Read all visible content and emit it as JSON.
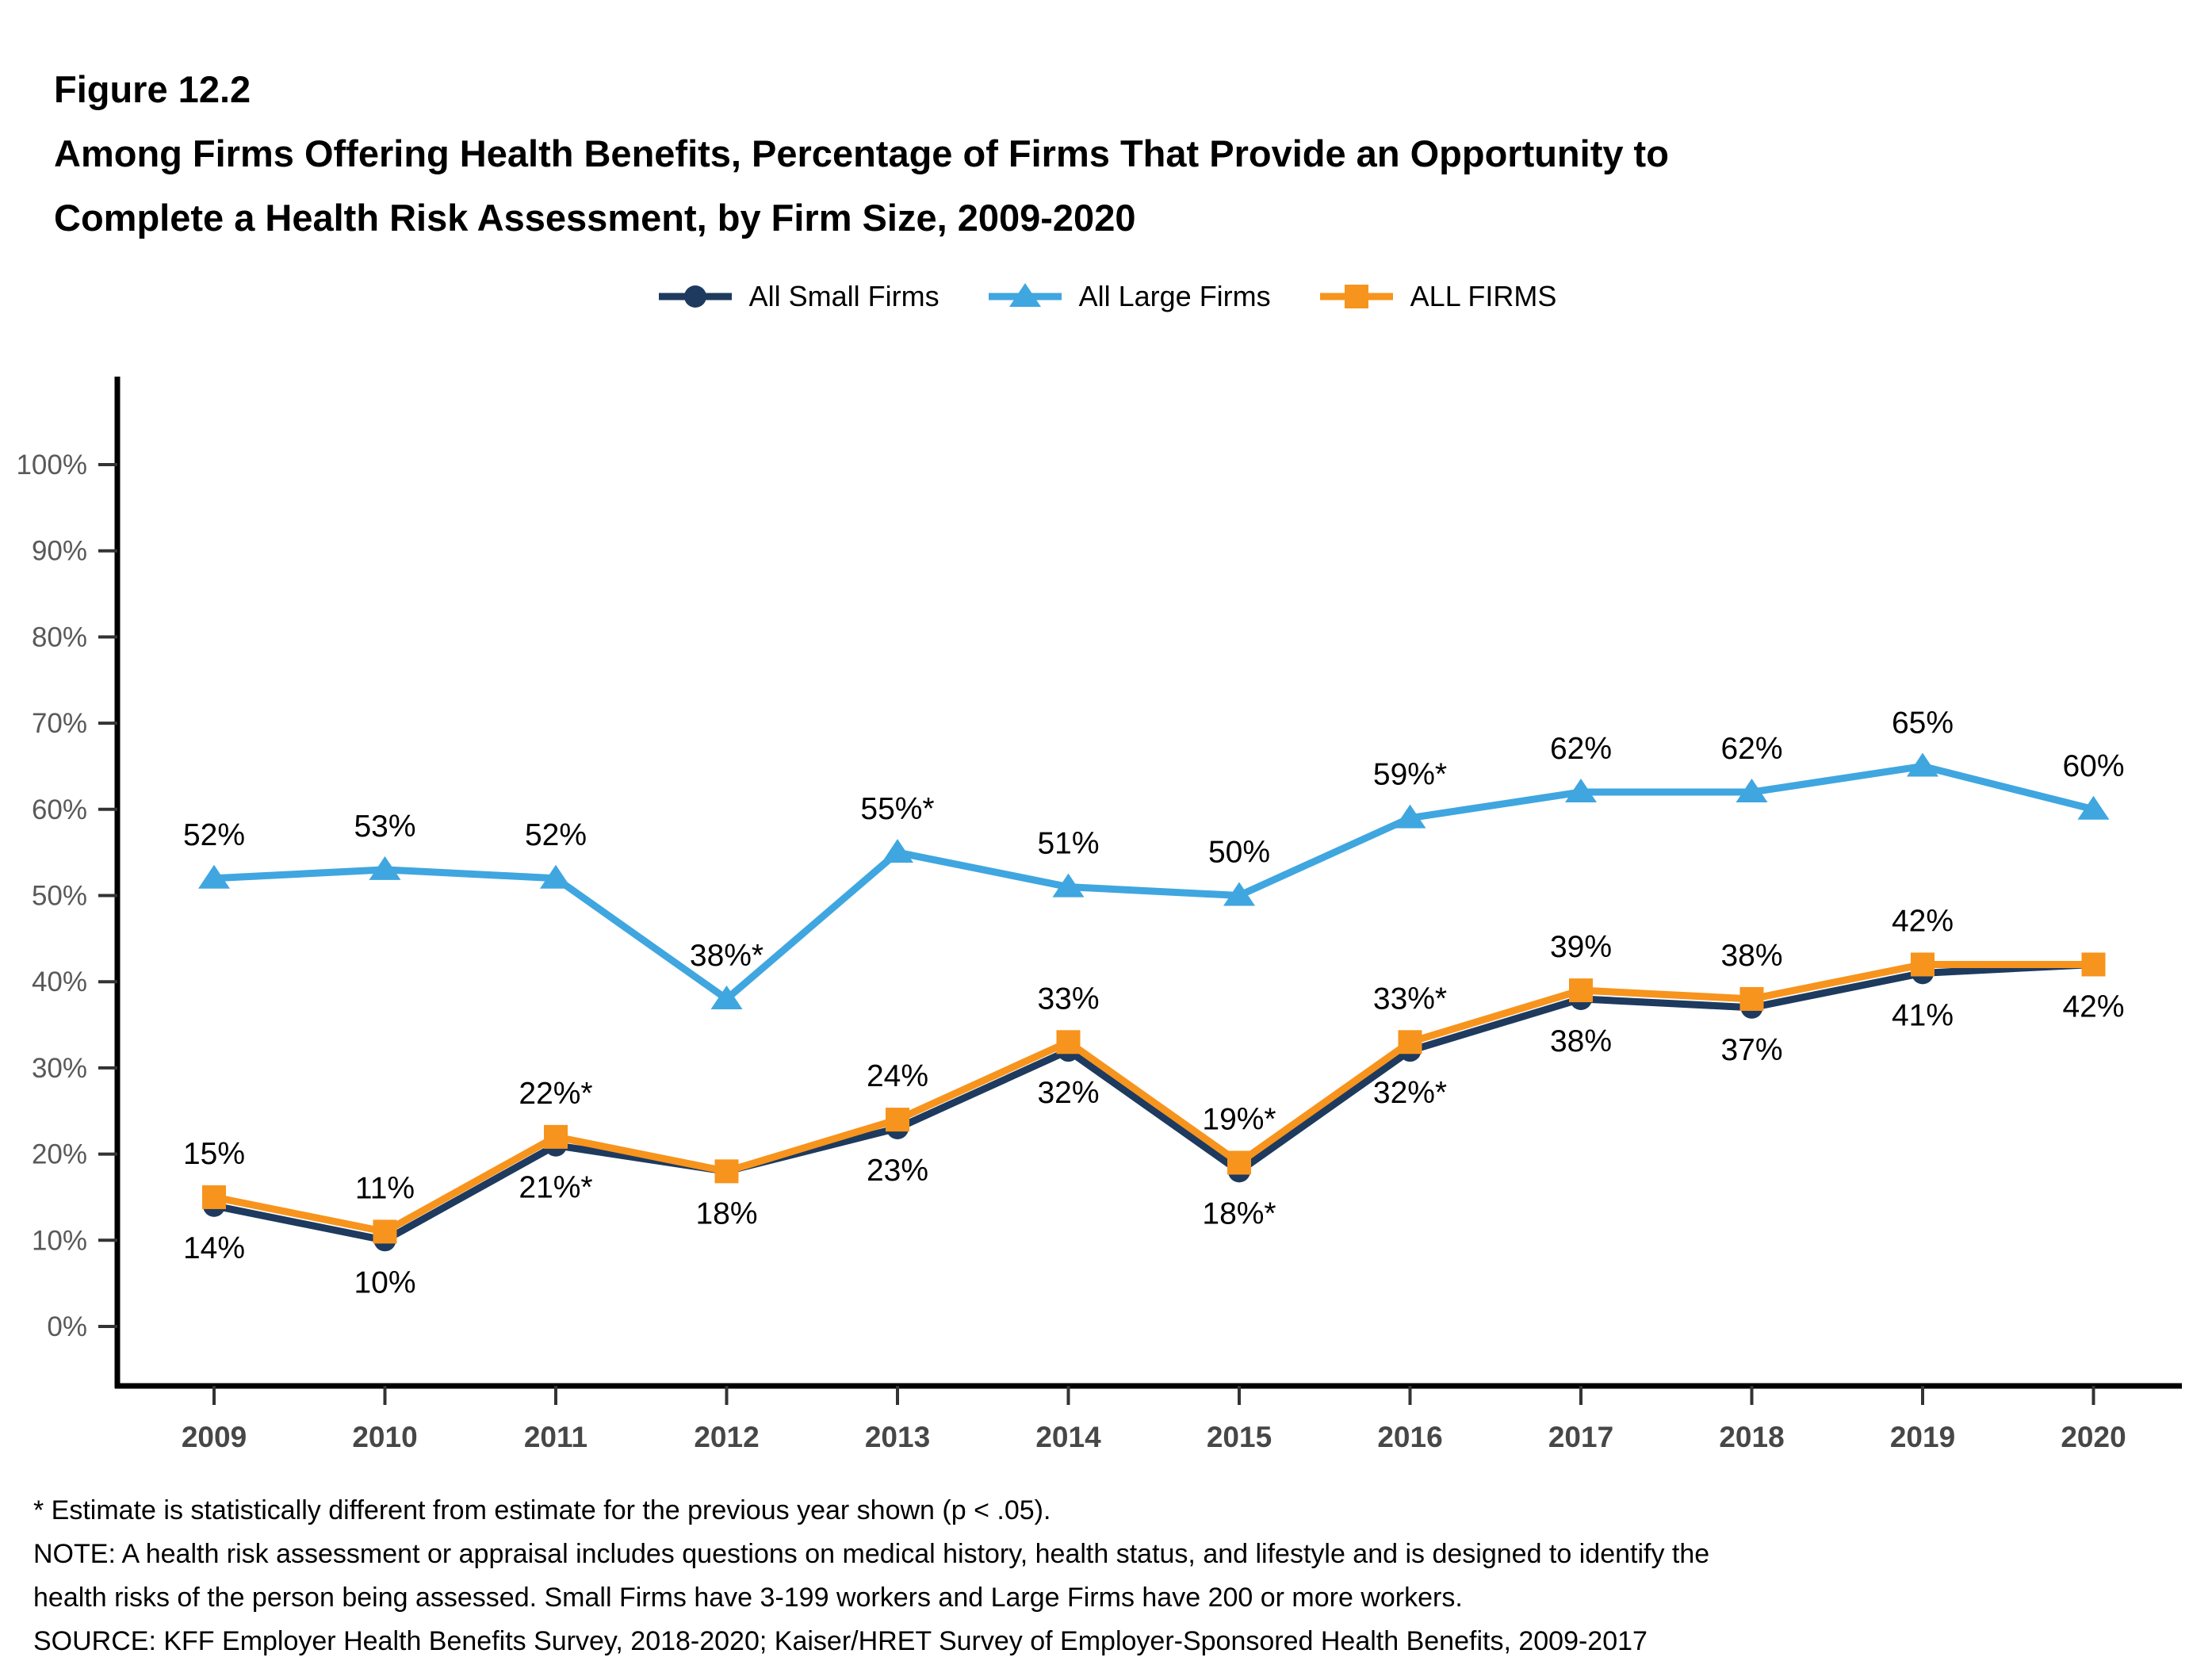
{
  "header": {
    "figure_number": "Figure 12.2",
    "title_lines": [
      "Among Firms Offering Health Benefits, Percentage of Firms That Provide an Opportunity to",
      "Complete a Health Risk Assessment, by Firm Size, 2009-2020"
    ]
  },
  "chart_data": {
    "type": "line",
    "x": [
      "2009",
      "2010",
      "2011",
      "2012",
      "2013",
      "2014",
      "2015",
      "2016",
      "2017",
      "2018",
      "2019",
      "2020"
    ],
    "xlabel": "",
    "ylabel": "",
    "ylim": [
      0,
      100
    ],
    "ytick_step": 10,
    "ytick_labels": [
      "0%",
      "10%",
      "20%",
      "30%",
      "40%",
      "50%",
      "60%",
      "70%",
      "80%",
      "90%",
      "100%"
    ],
    "grid": false,
    "legend_position": "top-center",
    "axis_color": "#000000",
    "ytick_label_color": "#595959",
    "xtick_label_color": "#474747",
    "data_label_color": "#000000",
    "series": [
      {
        "name": "All Small Firms",
        "color": "#1E3A5E",
        "marker": "circle",
        "values": [
          14,
          10,
          21,
          18,
          23,
          32,
          18,
          32,
          38,
          37,
          41,
          42
        ],
        "labels": [
          "14%",
          "10%",
          "21%*",
          null,
          "23%",
          "32%",
          "18%*",
          "32%*",
          "38%",
          "37%",
          "41%",
          null
        ],
        "label_default": "below",
        "label_overrides": {}
      },
      {
        "name": "All Large Firms",
        "color": "#3FA6E0",
        "marker": "triangle",
        "values": [
          52,
          53,
          52,
          38,
          55,
          51,
          50,
          59,
          62,
          62,
          65,
          60
        ],
        "labels": [
          "52%",
          "53%",
          "52%",
          "38%*",
          "55%*",
          "51%",
          "50%",
          "59%*",
          "62%",
          "62%",
          "65%",
          "60%"
        ],
        "label_default": "above",
        "label_overrides": {}
      },
      {
        "name": "ALL FIRMS",
        "color": "#F7941D",
        "marker": "square",
        "values": [
          15,
          11,
          22,
          18,
          24,
          33,
          19,
          33,
          39,
          38,
          42,
          42
        ],
        "labels": [
          "15%",
          "11%",
          "22%*",
          "18%",
          "24%",
          "33%",
          "19%*",
          "33%*",
          "39%",
          "38%",
          "42%",
          "42%"
        ],
        "label_default": "above",
        "label_overrides": {
          "3": "below",
          "11": "below"
        }
      }
    ]
  },
  "footnotes": {
    "lines": [
      "* Estimate is statistically different from estimate for the previous year shown (p < .05).",
      "NOTE: A health risk assessment or appraisal includes questions on medical history, health status, and lifestyle and is designed to identify the",
      "health risks of the person being assessed. Small Firms have 3-199 workers and Large Firms have 200 or more workers.",
      "SOURCE: KFF Employer Health Benefits Survey, 2018-2020; Kaiser/HRET Survey of Employer-Sponsored Health Benefits, 2009-2017"
    ]
  }
}
